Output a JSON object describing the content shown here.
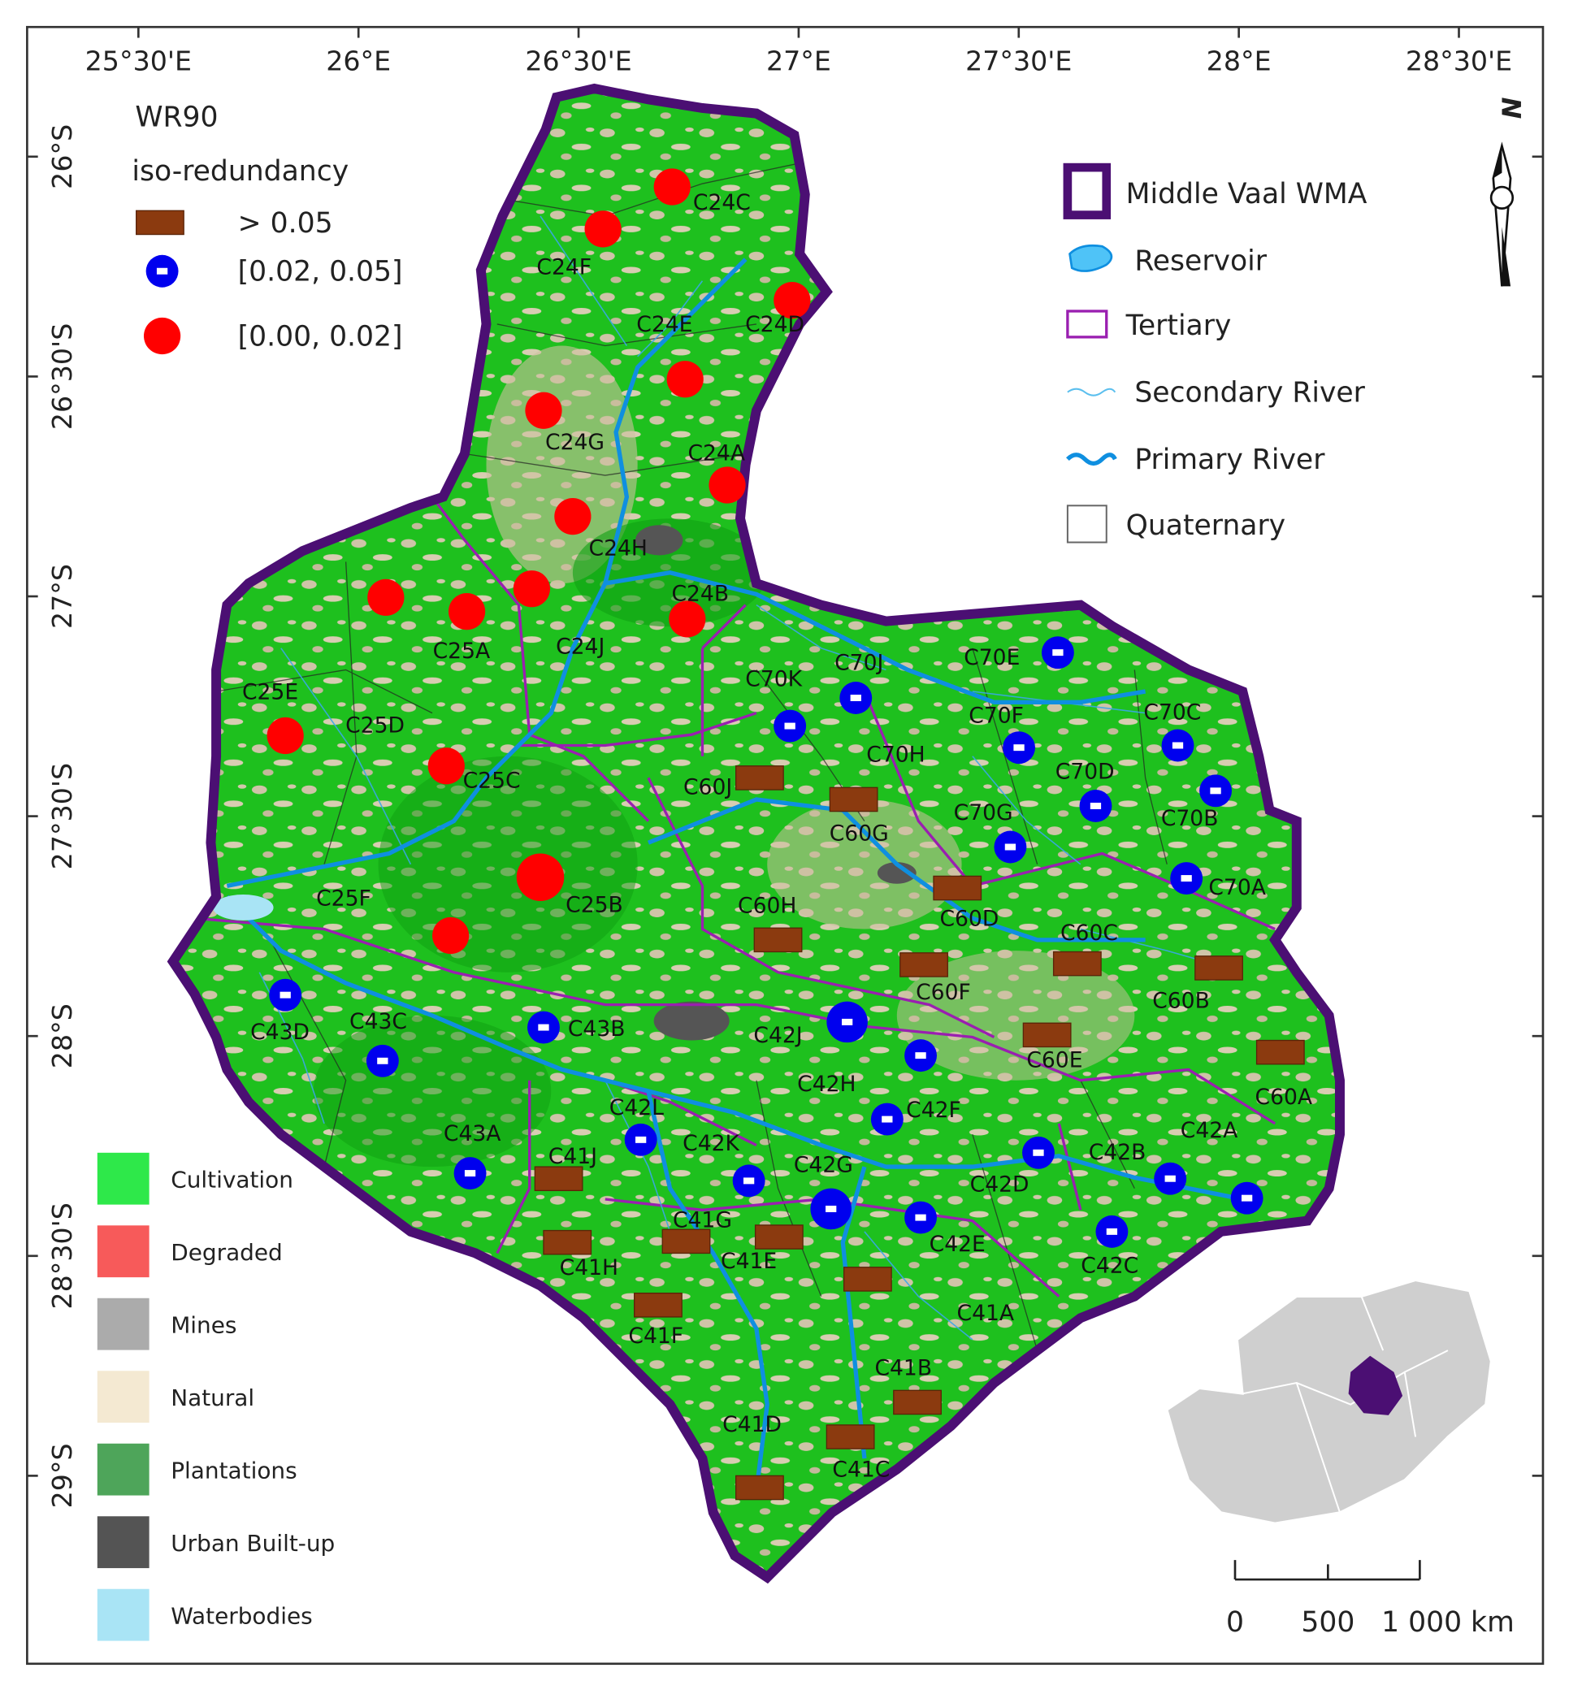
{
  "map": {
    "lon_labels": [
      "25°30'E",
      "26°E",
      "26°30'E",
      "27°E",
      "27°30'E",
      "28°E",
      "28°30'E"
    ],
    "lat_labels": [
      "26°S",
      "26°30'S",
      "27°S",
      "27°30'S",
      "28°S",
      "28°30'S",
      "29°S"
    ],
    "wr90_legend": {
      "title": "WR90",
      "subtitle": "iso-redundancy",
      "items": [
        {
          "label": "> 0.05",
          "color": "#8b3a0f"
        },
        {
          "label": "[0.02, 0.05]",
          "color": "#0000ee"
        },
        {
          "label": "[0.00, 0.02]",
          "color": "#ff0000"
        }
      ]
    },
    "layer_legend": [
      "Middle Vaal WMA",
      "Reservoir",
      "Tertiary",
      "Secondary River",
      "Primary River",
      "Quaternary"
    ],
    "landcover_legend": [
      {
        "label": "Cultivation",
        "color": "#2ee84a"
      },
      {
        "label": "Degraded",
        "color": "#f75a5a"
      },
      {
        "label": "Mines",
        "color": "#ababab"
      },
      {
        "label": "Natural",
        "color": "#f4e9d2"
      },
      {
        "label": "Plantations",
        "color": "#4ea55a"
      },
      {
        "label": "Urban Built-up",
        "color": "#545454"
      },
      {
        "label": "Waterbodies",
        "color": "#a9e4f5"
      }
    ],
    "north": "N",
    "scale_bar": [
      "0",
      "500",
      "1 000 km"
    ],
    "catchments": [
      {
        "label": "C24C",
        "class": 2
      },
      {
        "label": "C24F",
        "class": 2
      },
      {
        "label": "C24D",
        "class": 2
      },
      {
        "label": "C24E",
        "class": 2
      },
      {
        "label": "C24G",
        "class": 2
      },
      {
        "label": "C24A",
        "class": 2
      },
      {
        "label": "C24H",
        "class": 2
      },
      {
        "label": "C24J",
        "class": 2
      },
      {
        "label": "C25D",
        "class": 2
      },
      {
        "label": "C25A",
        "class": 2
      },
      {
        "label": "C24B",
        "class": 2
      },
      {
        "label": "C25E",
        "class": 2
      },
      {
        "label": "C25C",
        "class": 2
      },
      {
        "label": "C25B",
        "class": 2
      },
      {
        "label": "C25F",
        "class": 2
      },
      {
        "label": "C70J",
        "class": 1
      },
      {
        "label": "C70E",
        "class": 1
      },
      {
        "label": "C70K",
        "class": 1
      },
      {
        "label": "C70F",
        "class": 1
      },
      {
        "label": "C70C",
        "class": 1
      },
      {
        "label": "C70H"
      },
      {
        "label": "C70D",
        "class": 1
      },
      {
        "label": "C70B",
        "class": 1
      },
      {
        "label": "C70G",
        "class": 1
      },
      {
        "label": "C70A",
        "class": 1
      },
      {
        "label": "C43D",
        "class": 1
      },
      {
        "label": "C43C",
        "class": 1
      },
      {
        "label": "C43B",
        "class": 1
      },
      {
        "label": "C42J",
        "class": 1
      },
      {
        "label": "C42H",
        "class": 1
      },
      {
        "label": "C42F",
        "class": 1
      },
      {
        "label": "C42L",
        "class": 1
      },
      {
        "label": "C42K",
        "class": 1
      },
      {
        "label": "C42G",
        "class": 1
      },
      {
        "label": "C42E",
        "class": 1
      },
      {
        "label": "C42D",
        "class": 1
      },
      {
        "label": "C42B",
        "class": 1
      },
      {
        "label": "C42A",
        "class": 1
      },
      {
        "label": "C42C",
        "class": 1
      },
      {
        "label": "C43A",
        "class": 1
      },
      {
        "label": "C60J",
        "class": 0
      },
      {
        "label": "C60G",
        "class": 0
      },
      {
        "label": "C60D",
        "class": 0
      },
      {
        "label": "C60H",
        "class": 0
      },
      {
        "label": "C60F",
        "class": 0
      },
      {
        "label": "C60C",
        "class": 0
      },
      {
        "label": "C60B",
        "class": 0
      },
      {
        "label": "C60E",
        "class": 0
      },
      {
        "label": "C60A",
        "class": 0
      },
      {
        "label": "C41J",
        "class": 0
      },
      {
        "label": "C41G",
        "class": 0
      },
      {
        "label": "C41H",
        "class": 0
      },
      {
        "label": "C41E",
        "class": 0
      },
      {
        "label": "C41F",
        "class": 0
      },
      {
        "label": "C41A",
        "class": 0
      },
      {
        "label": "C41B",
        "class": 0
      },
      {
        "label": "C41D",
        "class": 0
      },
      {
        "label": "C41C",
        "class": 0
      }
    ]
  }
}
